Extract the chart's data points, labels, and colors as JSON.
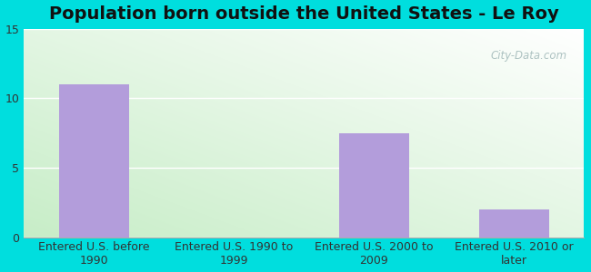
{
  "title": "Population born outside the United States - Le Roy",
  "categories": [
    "Entered U.S. before\n1990",
    "Entered U.S. 1990 to\n1999",
    "Entered U.S. 2000 to\n2009",
    "Entered U.S. 2010 or\nlater"
  ],
  "values": [
    11,
    0,
    7.5,
    2
  ],
  "bar_color": "#b39ddb",
  "ylim": [
    0,
    15
  ],
  "yticks": [
    0,
    5,
    10,
    15
  ],
  "background_outer": "#00dede",
  "grad_colors": [
    "#d4edd4",
    "#f0f8f0",
    "#e8f5e8",
    "#ffffff"
  ],
  "grid_color": "#ffffff",
  "title_fontsize": 14,
  "tick_fontsize": 9,
  "watermark": "City-Data.com"
}
